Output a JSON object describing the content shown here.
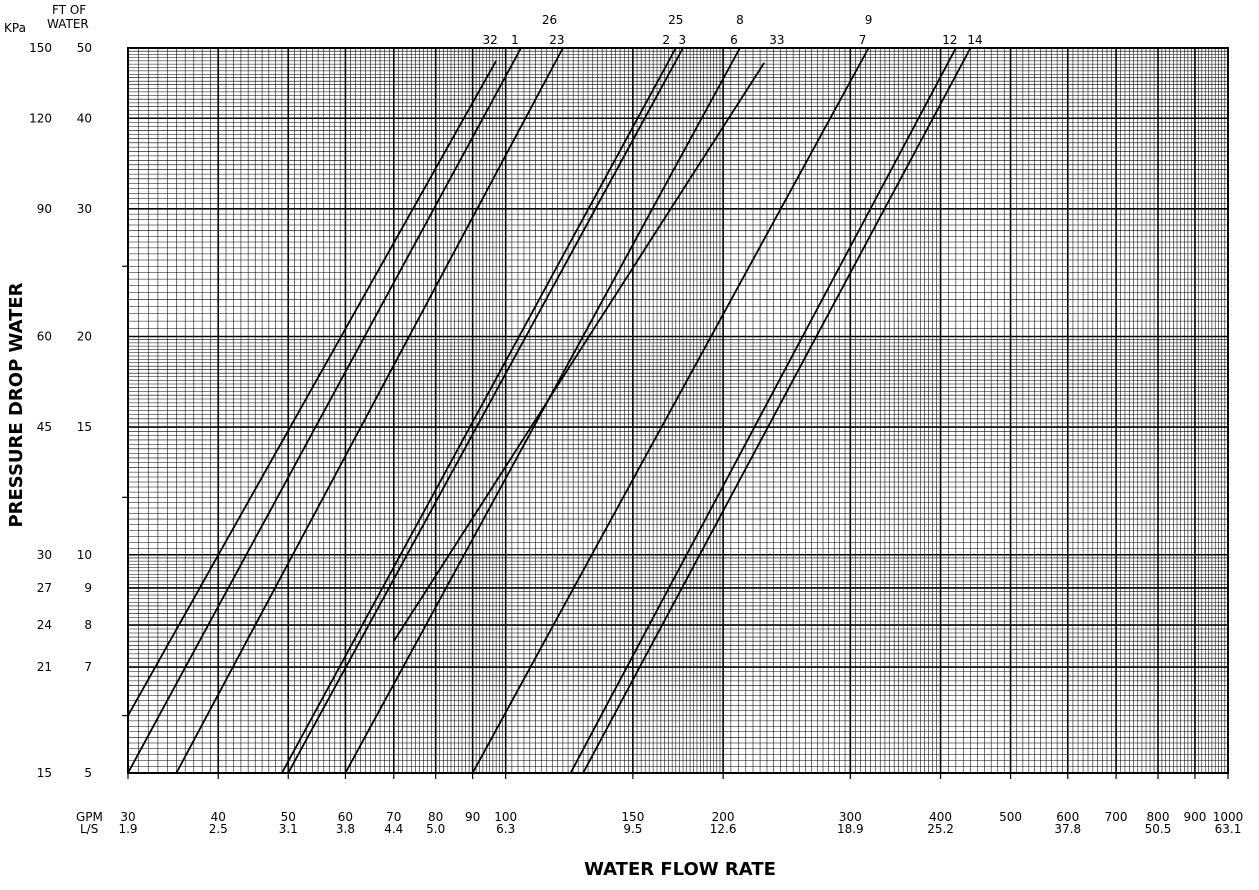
{
  "chart_data": {
    "type": "line",
    "title": "",
    "xlabel": "WATER FLOW RATE",
    "ylabel": "PRESSURE DROP WATER",
    "x_scale": "log",
    "y_scale": "log",
    "xlim": [
      30,
      1000
    ],
    "ylim": [
      5,
      50
    ],
    "grid": true,
    "x_unit_labels": [
      "GPM",
      "L/S"
    ],
    "y_unit_labels": [
      "KPa",
      "FT OF WATER"
    ],
    "x_ticks": [
      {
        "gpm": "30",
        "ls": "1.9"
      },
      {
        "gpm": "40",
        "ls": "2.5"
      },
      {
        "gpm": "50",
        "ls": "3.1"
      },
      {
        "gpm": "60",
        "ls": "3.8"
      },
      {
        "gpm": "70",
        "ls": "4.4"
      },
      {
        "gpm": "80",
        "ls": "5.0"
      },
      {
        "gpm": "90",
        "ls": ""
      },
      {
        "gpm": "100",
        "ls": "6.3"
      },
      {
        "gpm": "150",
        "ls": "9.5"
      },
      {
        "gpm": "200",
        "ls": "12.6"
      },
      {
        "gpm": "300",
        "ls": "18.9"
      },
      {
        "gpm": "400",
        "ls": "25.2"
      },
      {
        "gpm": "500",
        "ls": ""
      },
      {
        "gpm": "600",
        "ls": "37.8"
      },
      {
        "gpm": "700",
        "ls": ""
      },
      {
        "gpm": "800",
        "ls": "50.5"
      },
      {
        "gpm": "900",
        "ls": ""
      },
      {
        "gpm": "1000",
        "ls": "63.1"
      }
    ],
    "y_ticks": [
      {
        "ft": "50",
        "kpa": "150"
      },
      {
        "ft": "40",
        "kpa": "120"
      },
      {
        "ft": "30",
        "kpa": "90"
      },
      {
        "ft": "20",
        "kpa": "60"
      },
      {
        "ft": "15",
        "kpa": "45"
      },
      {
        "ft": "10",
        "kpa": "30"
      },
      {
        "ft": "9",
        "kpa": "27"
      },
      {
        "ft": "8",
        "kpa": "24"
      },
      {
        "ft": "7",
        "kpa": "21"
      },
      {
        "ft": "5",
        "kpa": "15"
      }
    ],
    "series": [
      {
        "name": "32",
        "points": [
          [
            30,
            6.0
          ],
          [
            97,
            48.0
          ]
        ]
      },
      {
        "name": "1",
        "points": [
          [
            30,
            5.0
          ],
          [
            105,
            50.0
          ]
        ]
      },
      {
        "name": "26 / 23",
        "points": [
          [
            35,
            5.0
          ],
          [
            120,
            50.0
          ]
        ]
      },
      {
        "name": "2 / 25",
        "points": [
          [
            49,
            5.0
          ],
          [
            172,
            50.0
          ]
        ]
      },
      {
        "name": "3",
        "points": [
          [
            50,
            5.0
          ],
          [
            176,
            50.0
          ]
        ]
      },
      {
        "name": "8 / 6",
        "points": [
          [
            60,
            5.0
          ],
          [
            211,
            50.0
          ]
        ]
      },
      {
        "name": "33",
        "points": [
          [
            70,
            7.6
          ],
          [
            228,
            47.7
          ]
        ]
      },
      {
        "name": "9 / 7",
        "points": [
          [
            90,
            5.0
          ],
          [
            318,
            50.0
          ]
        ]
      },
      {
        "name": "12",
        "points": [
          [
            123,
            5.0
          ],
          [
            420,
            50.0
          ]
        ]
      },
      {
        "name": "14",
        "points": [
          [
            128,
            5.0
          ],
          [
            440,
            50.0
          ]
        ]
      }
    ],
    "line_labels": {
      "top_row": [
        "26",
        "25",
        "8",
        "9"
      ],
      "bottom_row": [
        "32",
        "1",
        "23",
        "2",
        "3",
        "6",
        "33",
        "7",
        "12",
        "14"
      ]
    }
  }
}
